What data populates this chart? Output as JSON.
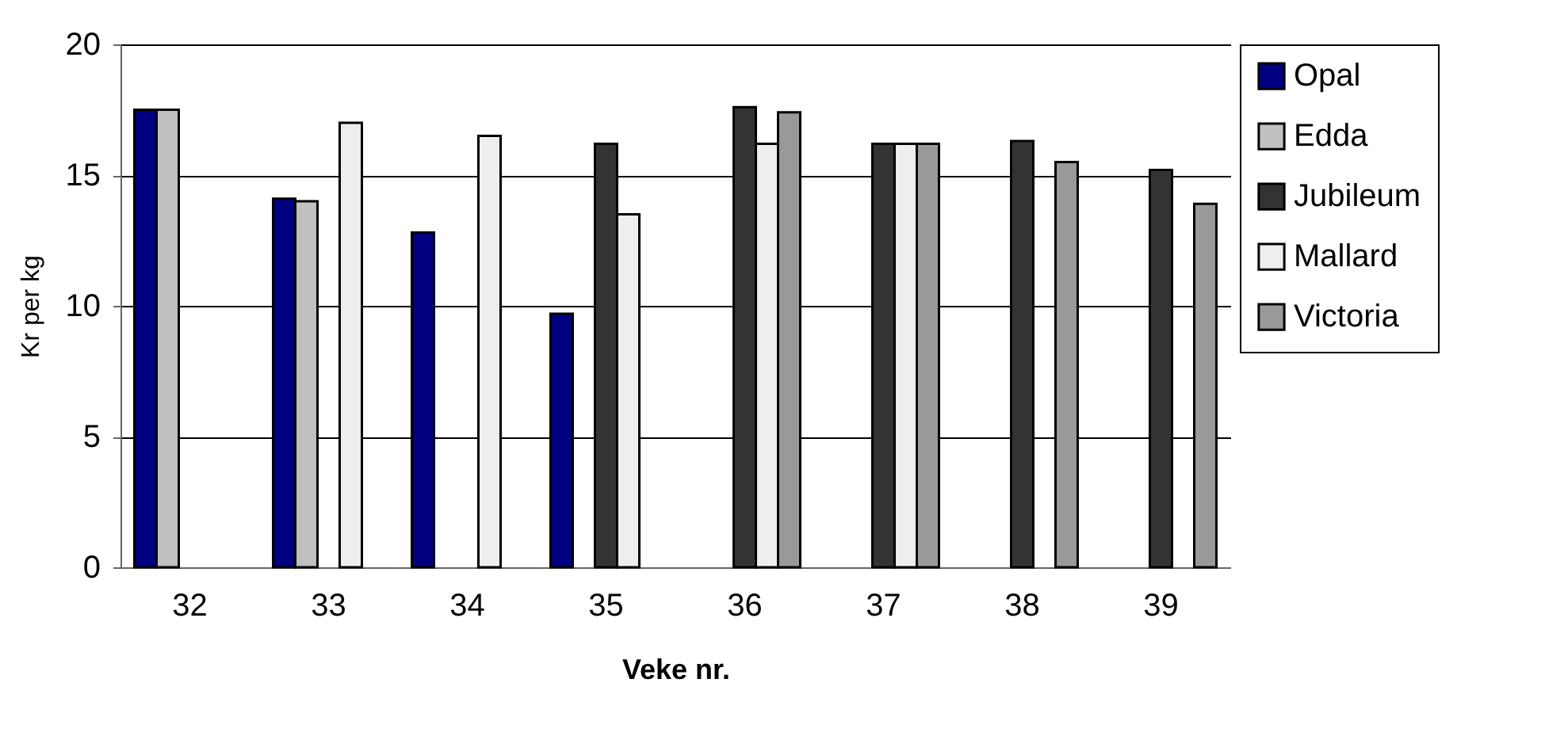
{
  "chart_data": {
    "type": "bar",
    "xlabel": "Veke nr.",
    "ylabel": "Kr per kg",
    "categories": [
      "32",
      "33",
      "34",
      "35",
      "36",
      "37",
      "38",
      "39"
    ],
    "series": [
      {
        "name": "Opal",
        "color": "#000080",
        "values": [
          17.5,
          14.1,
          12.8,
          9.7,
          null,
          null,
          null,
          null
        ]
      },
      {
        "name": "Edda",
        "color": "#c0c0c0",
        "values": [
          17.5,
          14.0,
          null,
          null,
          null,
          null,
          null,
          null
        ]
      },
      {
        "name": "Jubileum",
        "color": "#333333",
        "values": [
          null,
          null,
          null,
          16.2,
          17.6,
          16.2,
          16.3,
          15.2
        ]
      },
      {
        "name": "Mallard",
        "color": "#eeeeee",
        "values": [
          null,
          17.0,
          16.5,
          13.5,
          16.2,
          16.2,
          null,
          null
        ]
      },
      {
        "name": "Victoria",
        "color": "#999999",
        "values": [
          null,
          null,
          null,
          null,
          17.4,
          16.2,
          15.5,
          13.9
        ]
      }
    ],
    "ylim": [
      0,
      20
    ],
    "yticks": [
      0,
      5,
      10,
      15,
      20
    ],
    "grid": "y",
    "legend": "right"
  }
}
